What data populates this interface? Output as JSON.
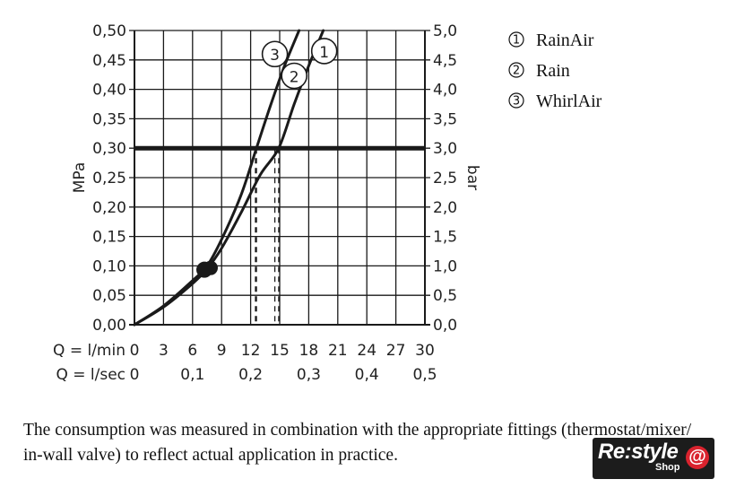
{
  "chart_data": {
    "type": "line",
    "ylabel": "MPa",
    "y2label": "bar",
    "ylim": [
      0,
      0.5
    ],
    "y2lim": [
      0,
      5.0
    ],
    "xlim": [
      0,
      30
    ],
    "y_ticks": [
      "0,00",
      "0,05",
      "0,10",
      "0,15",
      "0,20",
      "0,25",
      "0,30",
      "0,35",
      "0,40",
      "0,45",
      "0,50"
    ],
    "y2_ticks": [
      "0,0",
      "0,5",
      "1,0",
      "1,5",
      "2,0",
      "2,5",
      "3,0",
      "3,5",
      "4,0",
      "4,5",
      "5,0"
    ],
    "x_label_1": "Q = l/min",
    "x_ticks_1": [
      "0",
      "3",
      "6",
      "9",
      "12",
      "15",
      "18",
      "21",
      "24",
      "27",
      "30"
    ],
    "x_label_2": "Q = l/sec",
    "x_ticks_2": [
      {
        "value": 0,
        "label": "0"
      },
      {
        "value": 6,
        "label": "0,1"
      },
      {
        "value": 12,
        "label": "0,2"
      },
      {
        "value": 18,
        "label": "0,3"
      },
      {
        "value": 24,
        "label": "0,4"
      },
      {
        "value": 30,
        "label": "0,5"
      }
    ],
    "reference_line": {
      "y": 0.3
    },
    "operating_point": {
      "x": 7.5,
      "y": 0.095
    },
    "dashed_markers": [
      {
        "x": 12.5,
        "x_exact": 12.6
      },
      {
        "x": 14.5,
        "x_exact": 14.9
      }
    ],
    "series": [
      {
        "name": "RainAir",
        "marker": "1",
        "points": [
          [
            0,
            0
          ],
          [
            3,
            0.03
          ],
          [
            6,
            0.07
          ],
          [
            7.5,
            0.095
          ],
          [
            9,
            0.13
          ],
          [
            11,
            0.19
          ],
          [
            13,
            0.255
          ],
          [
            14.9,
            0.3
          ],
          [
            16.5,
            0.375
          ],
          [
            18,
            0.44
          ],
          [
            19.5,
            0.5
          ]
        ]
      },
      {
        "name": "Rain",
        "marker": "2",
        "points": [
          [
            0,
            0
          ],
          [
            3,
            0.03
          ],
          [
            6,
            0.07
          ],
          [
            7.5,
            0.095
          ],
          [
            9,
            0.13
          ],
          [
            11,
            0.19
          ],
          [
            13,
            0.255
          ],
          [
            14.9,
            0.3
          ],
          [
            16.5,
            0.375
          ],
          [
            18,
            0.44
          ],
          [
            19.5,
            0.5
          ]
        ]
      },
      {
        "name": "WhirlAir",
        "marker": "3",
        "points": [
          [
            0,
            0
          ],
          [
            3,
            0.032
          ],
          [
            6,
            0.075
          ],
          [
            7.5,
            0.1
          ],
          [
            9,
            0.145
          ],
          [
            11,
            0.22
          ],
          [
            12.6,
            0.3
          ],
          [
            14,
            0.37
          ],
          [
            15.5,
            0.44
          ],
          [
            17,
            0.5
          ]
        ]
      }
    ],
    "curve_labels": [
      {
        "marker": "1",
        "x": 19.6,
        "y": 0.465
      },
      {
        "marker": "2",
        "x": 16.5,
        "y": 0.423
      },
      {
        "marker": "3",
        "x": 14.5,
        "y": 0.46
      }
    ]
  },
  "legend": [
    {
      "num": "1",
      "label": "RainAir"
    },
    {
      "num": "2",
      "label": "Rain"
    },
    {
      "num": "3",
      "label": "WhirlAir"
    }
  ],
  "caption": {
    "line1": "The consumption was measured in combination with the appropriate fittings (thermostat/mixer/",
    "line2": "in-wall valve) to reflect actual application in practice."
  },
  "logo": {
    "main": "Re:style",
    "sub": "Shop",
    "at": "@"
  },
  "colors": {
    "curve": "#1a1a1a",
    "grid": "#1a1a1a",
    "logo_bg": "#1c1c1c",
    "logo_accent": "#d9232e"
  }
}
